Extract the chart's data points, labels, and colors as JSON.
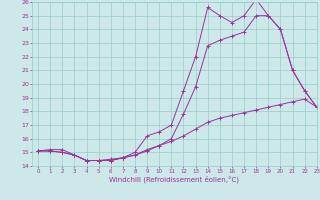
{
  "xlabel": "Windchill (Refroidissement éolien,°C)",
  "bg_color": "#cce8e8",
  "grid_color": "#99cccc",
  "line_color": "#993399",
  "ylim": [
    14,
    26
  ],
  "xlim": [
    -0.5,
    23
  ],
  "yticks": [
    14,
    15,
    16,
    17,
    18,
    19,
    20,
    21,
    22,
    23,
    24,
    25,
    26
  ],
  "xticks": [
    0,
    1,
    2,
    3,
    4,
    5,
    6,
    7,
    8,
    9,
    10,
    11,
    12,
    13,
    14,
    15,
    16,
    17,
    18,
    19,
    20,
    21,
    22,
    23
  ],
  "line1_x": [
    0,
    1,
    2,
    3,
    4,
    5,
    6,
    7,
    8,
    9,
    10,
    11,
    12,
    13,
    14,
    15,
    16,
    17,
    18,
    19,
    20,
    21,
    22,
    23
  ],
  "line1_y": [
    15.1,
    15.2,
    15.2,
    14.8,
    14.4,
    14.4,
    14.4,
    14.6,
    15.0,
    16.2,
    16.5,
    17.0,
    19.5,
    22.0,
    25.6,
    25.0,
    24.5,
    25.0,
    26.2,
    25.0,
    24.0,
    21.0,
    19.5,
    18.3
  ],
  "line2_x": [
    0,
    1,
    2,
    3,
    4,
    5,
    6,
    7,
    8,
    9,
    10,
    11,
    12,
    13,
    14,
    15,
    16,
    17,
    18,
    19,
    20,
    21,
    22,
    23
  ],
  "line2_y": [
    15.1,
    15.1,
    15.0,
    14.8,
    14.4,
    14.4,
    14.4,
    14.6,
    14.8,
    15.1,
    15.5,
    16.0,
    17.8,
    19.8,
    22.8,
    23.2,
    23.5,
    23.8,
    25.0,
    25.0,
    24.0,
    21.0,
    19.5,
    18.3
  ],
  "line3_x": [
    0,
    1,
    2,
    3,
    4,
    5,
    6,
    7,
    8,
    9,
    10,
    11,
    12,
    13,
    14,
    15,
    16,
    17,
    18,
    19,
    20,
    21,
    22,
    23
  ],
  "line3_y": [
    15.1,
    15.1,
    15.0,
    14.8,
    14.4,
    14.4,
    14.5,
    14.6,
    14.8,
    15.2,
    15.5,
    15.8,
    16.2,
    16.7,
    17.2,
    17.5,
    17.7,
    17.9,
    18.1,
    18.3,
    18.5,
    18.7,
    18.9,
    18.3
  ]
}
